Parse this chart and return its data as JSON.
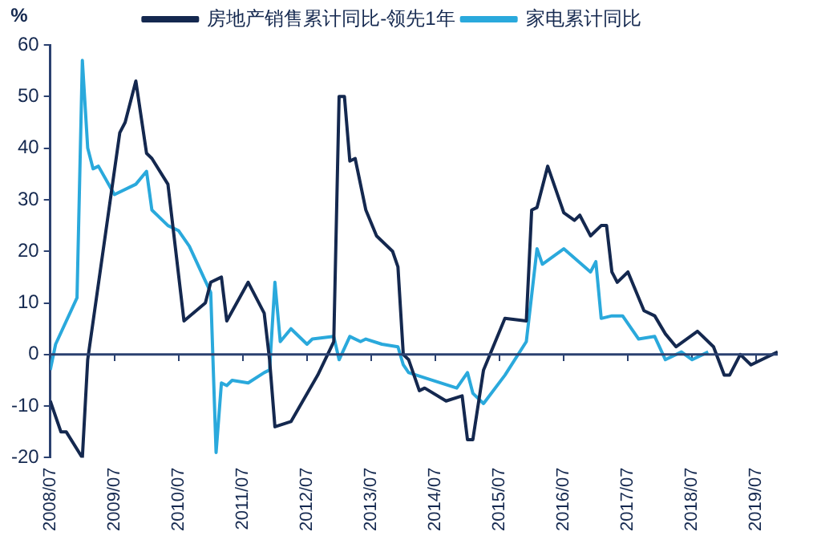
{
  "chart_data": {
    "type": "line",
    "ylabel": "%",
    "legend": "top",
    "marker": "none",
    "line_style": "solid",
    "grid": false,
    "xlim": [
      "2008-07",
      "2019-11"
    ],
    "xticks": [
      {
        "value": "2008-07",
        "label": "2008/07"
      },
      {
        "value": "2009-07",
        "label": "2009/07"
      },
      {
        "value": "2010-07",
        "label": "2010/07"
      },
      {
        "value": "2011-07",
        "label": "2011/07"
      },
      {
        "value": "2012-07",
        "label": "2012/07"
      },
      {
        "value": "2013-07",
        "label": "2013/07"
      },
      {
        "value": "2014-07",
        "label": "2014/07"
      },
      {
        "value": "2015-07",
        "label": "2015/07"
      },
      {
        "value": "2016-07",
        "label": "2016/07"
      },
      {
        "value": "2017-07",
        "label": "2017/07"
      },
      {
        "value": "2018-07",
        "label": "2018/07"
      },
      {
        "value": "2019-07",
        "label": "2019/07"
      }
    ],
    "ref_lines": [
      {
        "axis": "y",
        "value": 0,
        "color": "#2b4170",
        "line_style": "solid"
      }
    ],
    "ylim": [
      -20,
      60
    ],
    "yticks": [
      -20,
      -10,
      0,
      10,
      20,
      30,
      40,
      50,
      60
    ],
    "series": [
      {
        "name": "房地产销售累计同比-领先1年",
        "color": "#14284f",
        "x": [
          "2008-07",
          "2008-09",
          "2008-10",
          "2009-01",
          "2009-02",
          "2009-08",
          "2009-09",
          "2009-11",
          "2010-01",
          "2010-02",
          "2010-05",
          "2010-08",
          "2010-12",
          "2011-01",
          "2011-03",
          "2011-04",
          "2011-08",
          "2011-11",
          "2011-12",
          "2012-01",
          "2012-04",
          "2012-09",
          "2012-12",
          "2013-01",
          "2013-02",
          "2013-03",
          "2013-04",
          "2013-06",
          "2013-08",
          "2013-11",
          "2013-12",
          "2014-01",
          "2014-02",
          "2014-04",
          "2014-05",
          "2014-09",
          "2014-12",
          "2015-01",
          "2015-02",
          "2015-04",
          "2015-08",
          "2015-12",
          "2016-01",
          "2016-02",
          "2016-04",
          "2016-07",
          "2016-09",
          "2016-10",
          "2016-12",
          "2017-02",
          "2017-03",
          "2017-04",
          "2017-05",
          "2017-07",
          "2017-10",
          "2017-12",
          "2018-02",
          "2018-04",
          "2018-08",
          "2018-11",
          "2019-01",
          "2019-02",
          "2019-04",
          "2019-06",
          "2019-11"
        ],
        "values": [
          -9,
          -15,
          -15,
          -20,
          -1,
          43,
          45,
          53,
          39,
          38,
          33,
          6.5,
          10,
          14,
          15,
          6.5,
          14,
          8,
          -1,
          -14,
          -13,
          -4,
          2.5,
          50,
          50,
          37.5,
          38,
          28,
          23,
          20,
          17,
          0,
          -1,
          -7,
          -6.5,
          -9,
          -8,
          -16.5,
          -16.5,
          -3,
          7,
          6.5,
          28,
          28.5,
          36.5,
          27.5,
          26,
          27,
          23,
          25,
          25,
          16,
          14,
          16,
          8.5,
          7.5,
          4,
          1.5,
          4.5,
          1.5,
          -4,
          -4,
          0,
          -2,
          0.5
        ]
      },
      {
        "name": "家电累计同比",
        "color": "#2aa9dc",
        "x": [
          "2008-07",
          "2008-08",
          "2008-12",
          "2009-01",
          "2009-02",
          "2009-03",
          "2009-04",
          "2009-07",
          "2009-11",
          "2010-01",
          "2010-02",
          "2010-05",
          "2010-07",
          "2010-09",
          "2011-01",
          "2011-02",
          "2011-03",
          "2011-04",
          "2011-05",
          "2011-08",
          "2011-11",
          "2011-12",
          "2012-01",
          "2012-02",
          "2012-04",
          "2012-07",
          "2012-08",
          "2012-12",
          "2013-01",
          "2013-03",
          "2013-05",
          "2013-06",
          "2013-09",
          "2013-12",
          "2014-01",
          "2014-02",
          "2014-05",
          "2014-11",
          "2015-01",
          "2015-02",
          "2015-04",
          "2015-08",
          "2015-12",
          "2016-02",
          "2016-03",
          "2016-07",
          "2016-12",
          "2017-01",
          "2017-02",
          "2017-04",
          "2017-06",
          "2017-09",
          "2017-12",
          "2018-02",
          "2018-05",
          "2018-07",
          "2018-10"
        ],
        "values": [
          -3,
          2,
          11,
          57,
          40,
          36,
          36.5,
          31,
          33,
          35.5,
          28,
          25,
          24,
          21,
          12,
          -19,
          -5.5,
          -6,
          -5,
          -5.5,
          -3.5,
          -3,
          14,
          2.5,
          5,
          2,
          3,
          3.5,
          -1,
          3.5,
          2.5,
          3,
          2,
          1.5,
          -2,
          -3.5,
          -4.5,
          -6.5,
          -3.5,
          -7.5,
          -9.5,
          -4,
          2.5,
          20.5,
          17.5,
          20.5,
          16,
          18,
          7,
          7.5,
          7.5,
          3,
          3.5,
          -1,
          0.5,
          -1,
          0.5
        ]
      }
    ]
  }
}
